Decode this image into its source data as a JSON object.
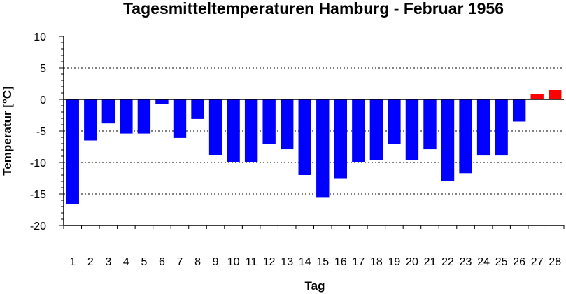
{
  "chart_data": {
    "type": "bar",
    "title": "Tagesmitteltemperaturen Hamburg - Februar 1956",
    "xlabel": "Tag",
    "ylabel": "Temperatur [°C]",
    "ylim": [
      -20,
      10
    ],
    "yticks": [
      10,
      5,
      0,
      -5,
      -10,
      -15,
      -20
    ],
    "grid": "dashed-horizontal",
    "categories": [
      "1",
      "2",
      "3",
      "4",
      "5",
      "6",
      "7",
      "8",
      "9",
      "10",
      "11",
      "12",
      "13",
      "14",
      "15",
      "16",
      "17",
      "18",
      "19",
      "20",
      "21",
      "22",
      "23",
      "24",
      "25",
      "26",
      "27",
      "28"
    ],
    "values": [
      -16.6,
      -6.5,
      -3.8,
      -5.4,
      -5.4,
      -0.7,
      -6.1,
      -3.1,
      -8.8,
      -10.0,
      -9.9,
      -7.1,
      -7.9,
      -12.0,
      -15.6,
      -12.5,
      -9.9,
      -9.6,
      -7.1,
      -9.6,
      -7.9,
      -13.0,
      -11.7,
      -8.9,
      -8.9,
      -3.5,
      0.8,
      1.5
    ],
    "colors": {
      "negative": "#0000ff",
      "positive": "#ff0000"
    }
  }
}
